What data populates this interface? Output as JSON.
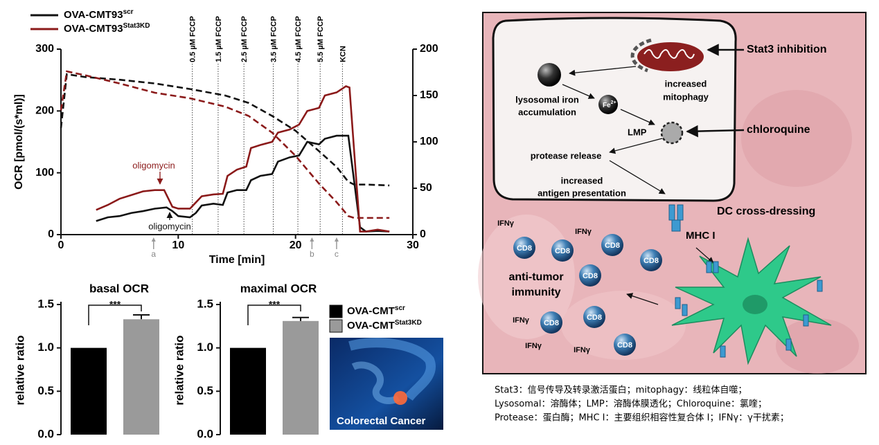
{
  "chart_data": [
    {
      "type": "line",
      "xlabel": "Time [min]",
      "ylabel": "OCR [pmol/(s*ml)]",
      "xlim": [
        0,
        30
      ],
      "xticks": [
        0,
        10,
        20,
        30
      ],
      "ylim": [
        0,
        300
      ],
      "yticks": [
        0,
        100,
        200,
        300
      ],
      "y2lim": [
        0,
        200
      ],
      "y2ticks": [
        0,
        50,
        100,
        150,
        200
      ],
      "series": [
        {
          "name": "OVA-CMT93",
          "name_superscript": "scr",
          "color": "#111111",
          "x": [
            3,
            4,
            5,
            6,
            7,
            8,
            9,
            9.5,
            10,
            11,
            11.5,
            12,
            13,
            13.8,
            14.2,
            15,
            15.8,
            16.2,
            17,
            18,
            18.5,
            19.5,
            20.3,
            21,
            22,
            22.5,
            23.5,
            24.5,
            25.5,
            26,
            27,
            28
          ],
          "values": [
            22,
            28,
            30,
            35,
            38,
            42,
            44,
            38,
            30,
            28,
            35,
            47,
            50,
            48,
            68,
            72,
            72,
            88,
            95,
            98,
            118,
            125,
            128,
            150,
            146,
            155,
            160,
            160,
            12,
            5,
            6,
            5
          ]
        },
        {
          "name": "OVA-CMT93",
          "name_superscript": "Stat3KD",
          "color": "#8b1a1a",
          "x": [
            3,
            4,
            5,
            6,
            7,
            8,
            8.8,
            9.5,
            10,
            11,
            11.5,
            12,
            13,
            13.8,
            14.2,
            15,
            15.8,
            16.2,
            17,
            18,
            18.5,
            19.5,
            20.3,
            21,
            22,
            22.5,
            23.5,
            24.3,
            24.6,
            25.5,
            26,
            27,
            28
          ],
          "values": [
            40,
            48,
            58,
            64,
            70,
            72,
            72,
            45,
            42,
            42,
            52,
            62,
            65,
            66,
            95,
            105,
            110,
            140,
            145,
            150,
            165,
            170,
            178,
            200,
            205,
            225,
            230,
            240,
            238,
            5,
            5,
            8,
            5
          ]
        },
        {
          "color": "#111111",
          "style": "dashed",
          "axis": "y2",
          "x": [
            0,
            0.5,
            2,
            5,
            8,
            11,
            14,
            16,
            18,
            20,
            22,
            23.5,
            24.5,
            25,
            26,
            28
          ],
          "values": [
            115,
            173,
            170,
            167,
            163,
            157,
            150,
            142,
            128,
            112,
            90,
            73,
            57,
            54,
            54,
            53
          ]
        },
        {
          "color": "#8b1a1a",
          "style": "dashed",
          "axis": "y2",
          "x": [
            0,
            0.5,
            2,
            5,
            8,
            11,
            14,
            16,
            18,
            20,
            22,
            23.5,
            24.5,
            25,
            28
          ],
          "values": [
            134,
            176,
            172,
            163,
            153,
            147,
            138,
            128,
            110,
            85,
            55,
            35,
            20,
            18,
            18
          ]
        }
      ],
      "injections": [
        {
          "label": "0.5 µM FCCP",
          "x": 11.2
        },
        {
          "label": "1.5 µM FCCP",
          "x": 13.4
        },
        {
          "label": "2.5 µM FCCP",
          "x": 15.6
        },
        {
          "label": "3.5 µM FCCP",
          "x": 18.1
        },
        {
          "label": "4.5 µM FCCP",
          "x": 20.2
        },
        {
          "label": "5.5 µM FCCP",
          "x": 22.1
        },
        {
          "label": "KCN",
          "x": 24
        }
      ],
      "markers": [
        {
          "label": "a",
          "x": 7.9
        },
        {
          "label": "b",
          "x": 21.4
        },
        {
          "label": "c",
          "x": 23.5
        }
      ],
      "annotations": [
        {
          "text": "oligomycin",
          "color": "#8b1a1a"
        },
        {
          "text": "oligomycin",
          "color": "#111111"
        }
      ]
    },
    {
      "type": "bar",
      "title": "basal OCR",
      "ylabel": "relative ratio",
      "ylim": [
        0,
        1.5
      ],
      "yticks": [
        {
          "value": 0,
          "label": "0.0"
        },
        {
          "value": 0.5,
          "label": "0.5"
        },
        {
          "value": 1,
          "label": "1.0"
        },
        {
          "value": 1.5,
          "label": "1.5"
        }
      ],
      "significance": "***",
      "series": [
        {
          "name": "OVA-CMT",
          "name_superscript": "scr",
          "color": "#000000",
          "values": [
            1.0
          ]
        },
        {
          "name": "OVA-CMT",
          "name_superscript": "Stat3KD",
          "color": "#9a9a9a",
          "values": [
            1.33
          ],
          "errors": [
            0.05
          ]
        }
      ]
    },
    {
      "type": "bar",
      "title": "maximal OCR",
      "ylabel": "relative ratio",
      "ylim": [
        0,
        1.5
      ],
      "yticks": [
        {
          "value": 0,
          "label": "0.0"
        },
        {
          "value": 0.5,
          "label": "0.5"
        },
        {
          "value": 1,
          "label": "1.0"
        },
        {
          "value": 1.5,
          "label": "1.5"
        }
      ],
      "significance": "***",
      "series": [
        {
          "color": "#000000",
          "values": [
            1.0
          ]
        },
        {
          "color": "#9a9a9a",
          "values": [
            1.31
          ],
          "errors": [
            0.04
          ]
        }
      ]
    }
  ],
  "image": {
    "caption": "Colorectal Cancer"
  },
  "diagram": {
    "stat3": "Stat3 inhibition",
    "mitophagy": [
      "increased",
      "mitophagy"
    ],
    "iron": [
      "lysosomal iron",
      "accumulation"
    ],
    "fe": "Fe",
    "fe_charge": "2+",
    "lmp": "LMP",
    "chloroquine": "chloroquine",
    "protease": "protease release",
    "antigen": [
      "increased",
      "antigen presentation"
    ],
    "dc": "DC cross-dressing",
    "mhc": "MHC I",
    "immunity": [
      "anti-tumor",
      "immunity"
    ],
    "cd8": [
      "CD8",
      "CD8",
      "CD8",
      "CD8",
      "CD8",
      "CD8",
      "CD8",
      "CD8"
    ],
    "ifn": [
      "IFNγ",
      "IFNγ",
      "IFNγ",
      "IFNγ",
      "IFNγ"
    ]
  },
  "caption": [
    "Stat3：信号传导及转录激活蛋白；mitophagy：线粒体自噬；",
    "Lysosomal：溶酶体；LMP：溶酶体膜透化；Chloroquine：氯喹；",
    "Protease：蛋白酶；MHC I：主要组织相容性复合体 I；IFNγ：γ干扰素；"
  ]
}
